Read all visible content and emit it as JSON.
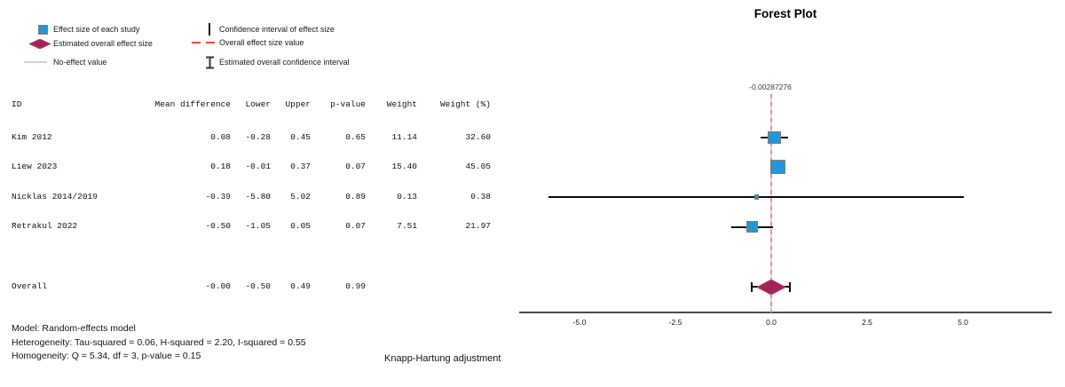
{
  "legend": {
    "items": [
      {
        "icon": "study-square-icon",
        "label": "Effect size of each study"
      },
      {
        "icon": "overall-diamond-icon",
        "label": "Estimated overall effect size"
      },
      {
        "icon": "no-effect-line-icon",
        "label": "No-effect value"
      },
      {
        "icon": "ci-bar-icon",
        "label": "Confidence interval of effect size"
      },
      {
        "icon": "overall-dash-icon",
        "label": "Overall effect size value"
      },
      {
        "icon": "overall-ci-icon",
        "label": "Estimated overall confidence interval"
      }
    ]
  },
  "table": {
    "headers": {
      "id": "ID",
      "mean": "Mean difference",
      "lower": "Lower",
      "upper": "Upper",
      "p": "p-value",
      "weight": "Weight",
      "weight_pct": "Weight (%)"
    },
    "rows": [
      {
        "id": "Kim 2012",
        "mean": "0.08",
        "lower": "-0.28",
        "upper": "0.45",
        "p": "0.65",
        "weight": "11.14",
        "weight_pct": "32.60"
      },
      {
        "id": "Liew 2023",
        "mean": "0.18",
        "lower": "-0.01",
        "upper": "0.37",
        "p": "0.07",
        "weight": "15.40",
        "weight_pct": "45.05"
      },
      {
        "id": "Nicklas 2014/2019",
        "mean": "-0.39",
        "lower": "-5.80",
        "upper": "5.02",
        "p": "0.89",
        "weight": "0.13",
        "weight_pct": "0.38"
      },
      {
        "id": "Retrakul 2022",
        "mean": "-0.50",
        "lower": "-1.05",
        "upper": "0.05",
        "p": "0.07",
        "weight": "7.51",
        "weight_pct": "21.97"
      }
    ],
    "overall": {
      "id": "Overall",
      "mean": "-0.00",
      "lower": "-0.50",
      "upper": "0.49",
      "p": "0.99",
      "weight": "",
      "weight_pct": ""
    }
  },
  "footer": {
    "model": "Model: Random-effects model",
    "heterogeneity": "Heterogeneity: Tau-squared = 0.06, H-squared = 2.20, I-squared = 0.55",
    "homogeneity": "Homogeneity: Q = 5.34, df = 3, p-value = 0.15",
    "adjustment": "Knapp-Hartung adjustment"
  },
  "plot": {
    "title": "Forest Plot",
    "annotation": "-0.00287276",
    "tick_labels": [
      "-5.0",
      "-2.5",
      "0.0",
      "2.5",
      "5.0"
    ]
  },
  "chart_data": {
    "type": "scatter",
    "subtype": "forest-plot",
    "title": "Forest Plot",
    "xlabel": "Mean difference",
    "x_ticks": [
      -5.0,
      -2.5,
      0.0,
      2.5,
      5.0
    ],
    "xlim": [
      -6.6,
      7.3
    ],
    "no_effect_value": 0,
    "overall_effect_label": "-0.00287276",
    "studies": [
      {
        "id": "Kim 2012",
        "mean": 0.08,
        "lower": -0.28,
        "upper": 0.45,
        "p_value": 0.65,
        "weight": 11.14,
        "weight_pct": 32.6
      },
      {
        "id": "Liew 2023",
        "mean": 0.18,
        "lower": -0.01,
        "upper": 0.37,
        "p_value": 0.07,
        "weight": 15.4,
        "weight_pct": 45.05
      },
      {
        "id": "Nicklas 2014/2019",
        "mean": -0.39,
        "lower": -5.8,
        "upper": 5.02,
        "p_value": 0.89,
        "weight": 0.13,
        "weight_pct": 0.38
      },
      {
        "id": "Retrakul 2022",
        "mean": -0.5,
        "lower": -1.05,
        "upper": 0.05,
        "p_value": 0.07,
        "weight": 7.51,
        "weight_pct": 21.97
      }
    ],
    "overall": {
      "id": "Overall",
      "mean": -0.00287276,
      "lower": -0.5,
      "upper": 0.49,
      "p_value": 0.99
    },
    "model_notes": [
      "Model: Random-effects model",
      "Heterogeneity: Tau-squared = 0.06, H-squared = 2.20, I-squared = 0.55",
      "Homogeneity: Q = 5.34, df = 3, p-value = 0.15",
      "Knapp-Hartung adjustment"
    ],
    "colors": {
      "study_marker": "#2396d7",
      "overall_marker": "#a12456",
      "overall_effect_line": "#e89391",
      "no_effect_line": "#dcdcdc",
      "ci_line": "#0d0d0d"
    }
  }
}
